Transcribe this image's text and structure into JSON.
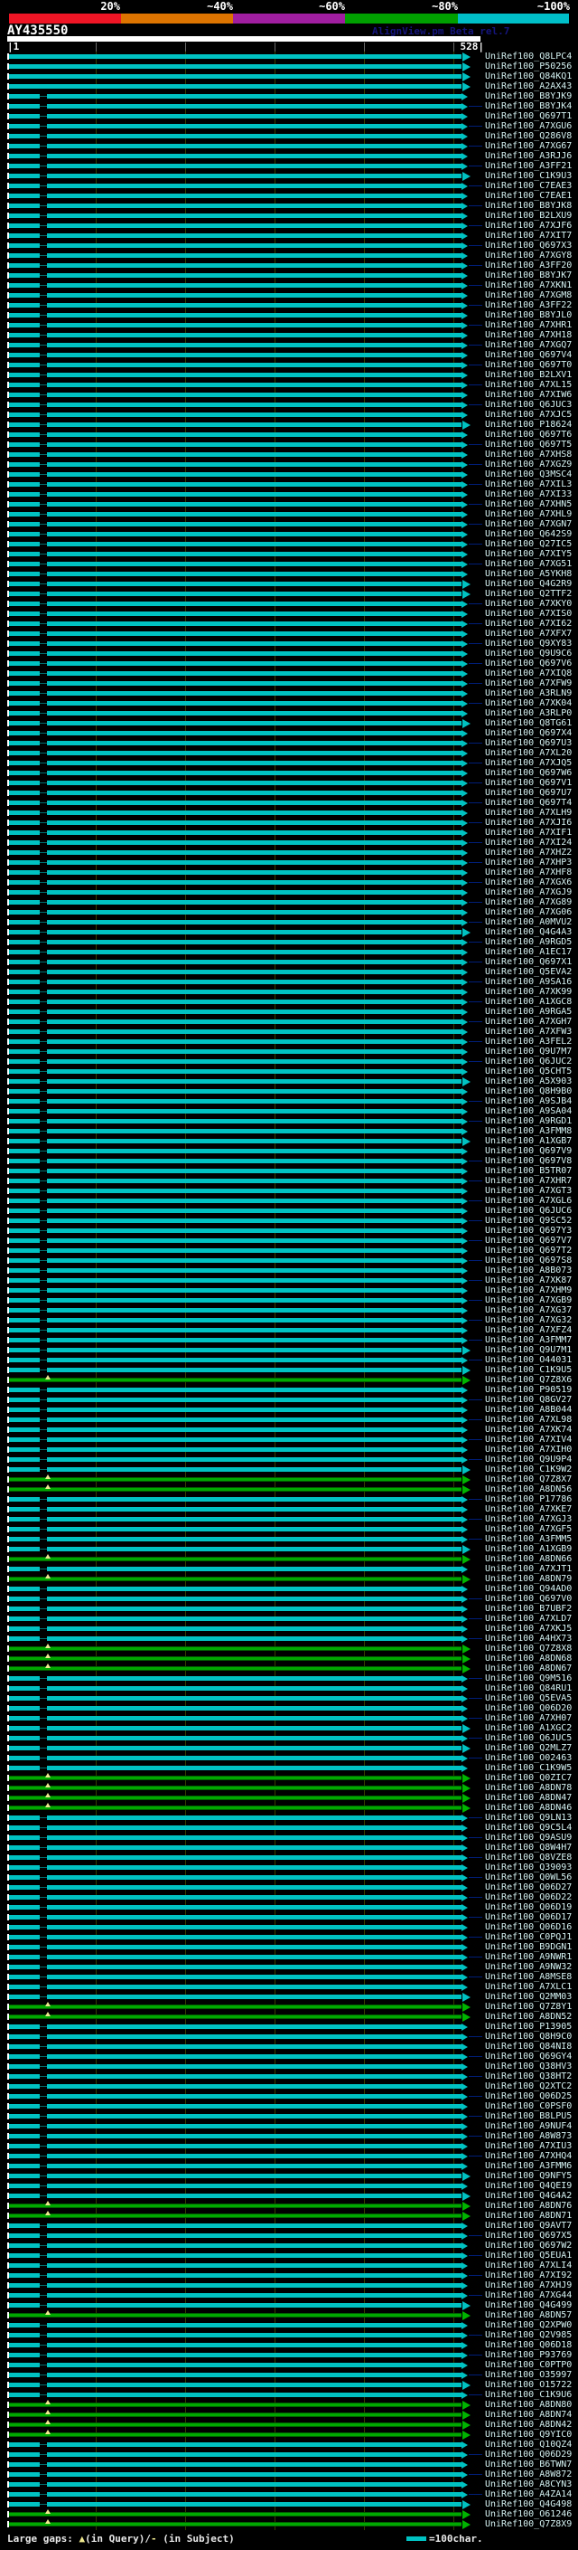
{
  "header": {
    "title": "AY435550",
    "version": "AlignView.pm Beta rel.7",
    "scale_left": "|1",
    "scale_right": "528|"
  },
  "footer": {
    "large_gaps_label": "Large gaps: ",
    "query_gap_symbol": "▲",
    "query_gap_text": "(in Query)/",
    "subject_gap_symbol": "- ",
    "subject_gap_text": "(in Subject)",
    "scalebar_label": "=100char."
  },
  "chart_data": {
    "type": "bar",
    "orientation": "horizontal",
    "title": "AY435550",
    "x_axis": {
      "min": 1,
      "max": 528,
      "min_label": "1",
      "max_label": "528",
      "grid_interval_chars": 100
    },
    "score_key": {
      "labels": [
        "20%",
        "~40%",
        "~60%",
        "~80%",
        "~100%"
      ],
      "colors": [
        "#ee1525",
        "#dd7400",
        "#a01ea0",
        "#00a000",
        "#00bfc8"
      ]
    },
    "bar_colors": {
      "cyan": "#00c2c2",
      "green": "#00a800",
      "tail_navy": "#001e78"
    },
    "bar_span": [
      1,
      528
    ],
    "rows": [
      "UniRef100_Q8LPC4",
      "UniRef100_P50256",
      "UniRef100_Q84KQ1",
      "UniRef100_A2AX43",
      "UniRef100_B8YJK9",
      "UniRef100_B8YJK4",
      "UniRef100_Q697T1",
      "UniRef100_A7XGU6",
      "UniRef100_Q286V8",
      "UniRef100_A7XG67",
      "UniRef100_A3RJJ6",
      "UniRef100_A3FF21",
      "UniRef100_C1K9U3",
      "UniRef100_C7EAE3",
      "UniRef100_C7EAE1",
      "UniRef100_B8YJK8",
      "UniRef100_B2LXU9",
      "UniRef100_A7XJF6",
      "UniRef100_A7XIT7",
      "UniRef100_Q697X3",
      "UniRef100_A7XGY8",
      "UniRef100_A3FF20",
      "UniRef100_B8YJK7",
      "UniRef100_A7XKN1",
      "UniRef100_A7XGM8",
      "UniRef100_A3FF22",
      "UniRef100_B8YJL0",
      "UniRef100_A7XHR1",
      "UniRef100_A7XH18",
      "UniRef100_A7XGQ7",
      "UniRef100_Q697V4",
      "UniRef100_Q697T0",
      "UniRef100_B2LXV1",
      "UniRef100_A7XL15",
      "UniRef100_A7XIW6",
      "UniRef100_Q6JUC3",
      "UniRef100_A7XJC5",
      "UniRef100_P18624",
      "UniRef100_Q697T6",
      "UniRef100_Q697T5",
      "UniRef100_A7XHS8",
      "UniRef100_A7XGZ9",
      "UniRef100_Q3MSC4",
      "UniRef100_A7XIL3",
      "UniRef100_A7XI33",
      "UniRef100_A7XHN5",
      "UniRef100_A7XHL9",
      "UniRef100_A7XGN7",
      "UniRef100_Q642S9",
      "UniRef100_Q27IC5",
      "UniRef100_A7XIY5",
      "UniRef100_A7XG51",
      "UniRef100_A5YKH8",
      "UniRef100_Q4G2R9",
      "UniRef100_Q2TTF2",
      "UniRef100_A7XKY0",
      "UniRef100_A7XIS0",
      "UniRef100_A7XI62",
      "UniRef100_A7XFX7",
      "UniRef100_Q9XY83",
      "UniRef100_Q9U9C6",
      "UniRef100_Q697V6",
      "UniRef100_A7XIQ8",
      "UniRef100_A7XFW9",
      "UniRef100_A3RLN9",
      "UniRef100_A7XK04",
      "UniRef100_A3RLP0",
      "UniRef100_Q8TG61",
      "UniRef100_Q697X4",
      "UniRef100_Q697U3",
      "UniRef100_A7XL20",
      "UniRef100_A7XJQ5",
      "UniRef100_Q697W6",
      "UniRef100_Q697V1",
      "UniRef100_Q697U7",
      "UniRef100_Q697T4",
      "UniRef100_A7XLH9",
      "UniRef100_A7XJI6",
      "UniRef100_A7XIF1",
      "UniRef100_A7XI24",
      "UniRef100_A7XHZ2",
      "UniRef100_A7XHP3",
      "UniRef100_A7XHF8",
      "UniRef100_A7XGX6",
      "UniRef100_A7XGJ9",
      "UniRef100_A7XG89",
      "UniRef100_A7XG06",
      "UniRef100_A0MVU2",
      "UniRef100_Q4G4A3",
      "UniRef100_A9RGD5",
      "UniRef100_A1EC17",
      "UniRef100_Q697X1",
      "UniRef100_Q5EVA2",
      "UniRef100_A9SA16",
      "UniRef100_A7XK99",
      "UniRef100_A1XGC8",
      "UniRef100_A9RGA5",
      "UniRef100_A7XGH7",
      "UniRef100_A7XFW3",
      "UniRef100_A3FEL2",
      "UniRef100_Q9U7M7",
      "UniRef100_Q6JUC2",
      "UniRef100_Q5CHT5",
      "UniRef100_A5X903",
      "UniRef100_Q8H9B0",
      "UniRef100_A9SJB4",
      "UniRef100_A9SA04",
      "UniRef100_A9RGD1",
      "UniRef100_A3FMM8",
      "UniRef100_A1XGB7",
      "UniRef100_Q697V9",
      "UniRef100_Q697V8",
      "UniRef100_B5TR07",
      "UniRef100_A7XHR7",
      "UniRef100_A7XGT3",
      "UniRef100_A7XGL6",
      "UniRef100_Q6JUC6",
      "UniRef100_Q9SC52",
      "UniRef100_Q697Y3",
      "UniRef100_Q697V7",
      "UniRef100_Q697T2",
      "UniRef100_Q697S8",
      "UniRef100_A8B073",
      "UniRef100_A7XK87",
      "UniRef100_A7XHM9",
      "UniRef100_A7XGB9",
      "UniRef100_A7XG37",
      "UniRef100_A7XG32",
      "UniRef100_A7XFZ4",
      "UniRef100_A3FMM7",
      "UniRef100_Q9U7M1",
      "UniRef100_O44031",
      "UniRef100_C1K9U5",
      "UniRef100_Q7Z8X6",
      "UniRef100_P90519",
      "UniRef100_Q8GV27",
      "UniRef100_A8B044",
      "UniRef100_A7XL98",
      "UniRef100_A7XK74",
      "UniRef100_A7XIV4",
      "UniRef100_A7XIH0",
      "UniRef100_Q9U9P4",
      "UniRef100_C1K9W2",
      "UniRef100_Q7Z8X7",
      "UniRef100_A8DN56",
      "UniRef100_P17786",
      "UniRef100_A7XKE7",
      "UniRef100_A7XGJ3",
      "UniRef100_A7XGF5",
      "UniRef100_A3FMM5",
      "UniRef100_A1XGB9",
      "UniRef100_A8DN66",
      "UniRef100_A7XJT1",
      "UniRef100_A8DN79",
      "UniRef100_Q94AD0",
      "UniRef100_Q697V0",
      "UniRef100_B7UBF2",
      "UniRef100_A7XLD7",
      "UniRef100_A7XKJ5",
      "UniRef100_A4HX73",
      "UniRef100_Q7Z8X8",
      "UniRef100_A8DN68",
      "UniRef100_A8DN67",
      "UniRef100_Q9M516",
      "UniRef100_Q84RU1",
      "UniRef100_Q5EVA5",
      "UniRef100_Q06D20",
      "UniRef100_A7XH07",
      "UniRef100_A1XGC2",
      "UniRef100_Q6JUC5",
      "UniRef100_Q2MLZ7",
      "UniRef100_O02463",
      "UniRef100_C1K9W5",
      "UniRef100_Q0ZIC7",
      "UniRef100_A8DN78",
      "UniRef100_A8DN47",
      "UniRef100_A8DN46",
      "UniRef100_Q9LN13",
      "UniRef100_Q9C5L4",
      "UniRef100_Q9ASU9",
      "UniRef100_Q8W4H7",
      "UniRef100_Q8VZE8",
      "UniRef100_Q39093",
      "UniRef100_Q0WL56",
      "UniRef100_Q06D27",
      "UniRef100_Q06D22",
      "UniRef100_Q06D19",
      "UniRef100_Q06D17",
      "UniRef100_Q06D16",
      "UniRef100_C0PQJ1",
      "UniRef100_B9DGN1",
      "UniRef100_A9NWR1",
      "UniRef100_A9NW32",
      "UniRef100_A8MSE8",
      "UniRef100_A7XLC1",
      "UniRef100_Q2MM03",
      "UniRef100_Q7Z8Y1",
      "UniRef100_A8DN52",
      "UniRef100_P13905",
      "UniRef100_Q8H9C0",
      "UniRef100_Q84NI8",
      "UniRef100_Q69GY4",
      "UniRef100_Q38HV3",
      "UniRef100_Q38HT2",
      "UniRef100_Q2XTC2",
      "UniRef100_Q06D25",
      "UniRef100_C0PSF0",
      "UniRef100_B8LPU5",
      "UniRef100_A9NUF4",
      "UniRef100_A8W873",
      "UniRef100_A7XIU3",
      "UniRef100_A7XHQ4",
      "UniRef100_A3FMM6",
      "UniRef100_Q9NFY5",
      "UniRef100_Q4QEI9",
      "UniRef100_Q4G4A2",
      "UniRef100_A8DN76",
      "UniRef100_A8DN71",
      "UniRef100_Q9AVT7",
      "UniRef100_Q697X5",
      "UniRef100_Q697W2",
      "UniRef100_Q5EUA1",
      "UniRef100_A7XLI4",
      "UniRef100_A7XI92",
      "UniRef100_A7XHJ9",
      "UniRef100_A7XG44",
      "UniRef100_Q4G499",
      "UniRef100_A8DN57",
      "UniRef100_Q2XPW0",
      "UniRef100_Q2V985",
      "UniRef100_Q06D18",
      "UniRef100_P93769",
      "UniRef100_C0PTP0",
      "UniRef100_O35997",
      "UniRef100_O15722",
      "UniRef100_C1K9U6",
      "UniRef100_A8DN80",
      "UniRef100_A8DN74",
      "UniRef100_A8DN42",
      "UniRef100_Q9YIC0",
      "UniRef100_Q10QZ4",
      "UniRef100_Q06D29",
      "UniRef100_B6TWN7",
      "UniRef100_A8W872",
      "UniRef100_A8CYN3",
      "UniRef100_A4ZA14",
      "UniRef100_Q4G498",
      "UniRef100_O61246",
      "UniRef100_Q7Z8X9"
    ],
    "green_rows": [
      134,
      144,
      145,
      152,
      154,
      161,
      162,
      163,
      174,
      175,
      176,
      177,
      197,
      198,
      217,
      218,
      228,
      237,
      238,
      239,
      240,
      248,
      249
    ],
    "big_arrow_rows": [
      1,
      2,
      3,
      4,
      13,
      38,
      54,
      55,
      68,
      89,
      104,
      110,
      131,
      133,
      143,
      151,
      169,
      171,
      196,
      214,
      216,
      227,
      235,
      247
    ]
  }
}
